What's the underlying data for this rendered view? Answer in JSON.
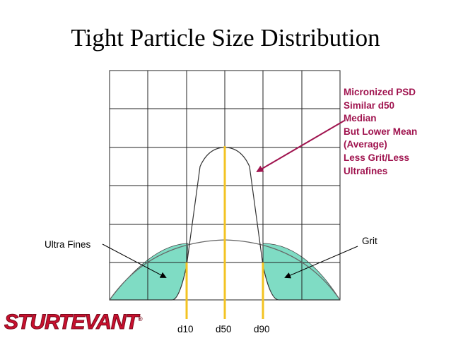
{
  "title": "Tight Particle Size Distribution",
  "annotation": {
    "lines": [
      "Micronized PSD",
      "Similar d50",
      "Median",
      "But Lower Mean",
      "(Average)",
      "Less Grit/Less",
      "Ultrafines"
    ],
    "color": "#a0144f"
  },
  "labels": {
    "ultra_fines": "Ultra Fines",
    "grit": "Grit",
    "d10": "d10",
    "d50": "d50",
    "d90": "d90"
  },
  "logo": {
    "text": "STURTEVANT",
    "reg_mark": "®",
    "color": "#c8102e"
  },
  "colors": {
    "fill": "#7fdcc4",
    "marker": "#f3c322",
    "arrow": "#a0144f",
    "grid": "#222222"
  }
}
